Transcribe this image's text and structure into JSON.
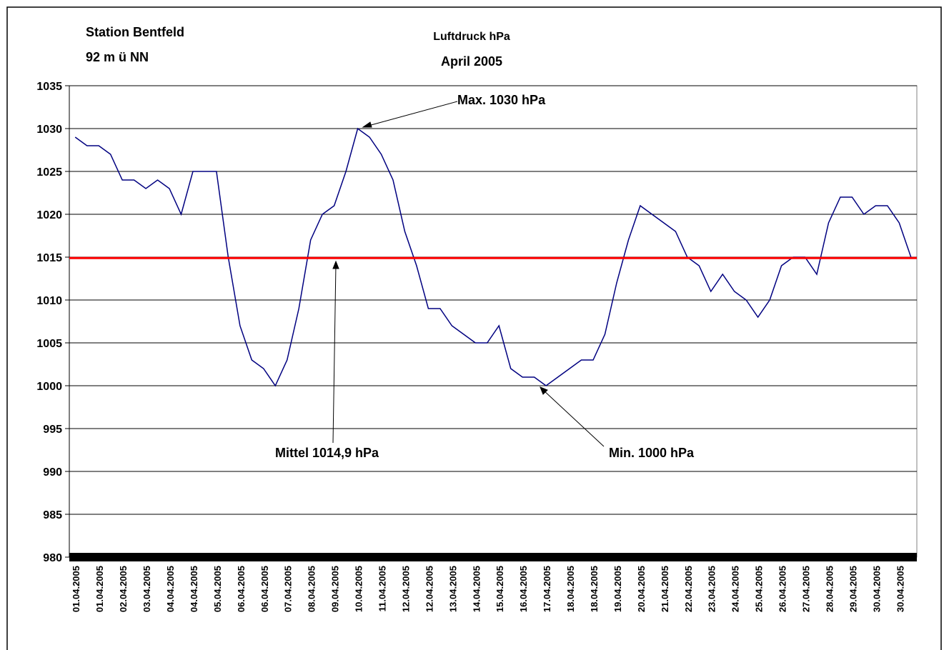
{
  "chart_data": {
    "type": "line",
    "title": "Luftdruck hPa",
    "subtitle": "April 2005",
    "station": "Station Bentfeld",
    "elevation": "92 m ü NN",
    "categories": [
      "01.04.2005",
      null,
      "01.04.2005",
      null,
      "02.04.2005",
      null,
      "03.04.2005",
      null,
      "04.04.2005",
      null,
      "04.04.2005",
      null,
      "05.04.2005",
      null,
      "06.04.2005",
      null,
      "06.04.2005",
      null,
      "07.04.2005",
      null,
      "08.04.2005",
      null,
      "09.04.2005",
      null,
      "10.04.2005",
      null,
      "11.04.2005",
      null,
      "12.04.2005",
      null,
      "12.04.2005",
      null,
      "13.04.2005",
      null,
      "14.04.2005",
      null,
      "15.04.2005",
      null,
      "16.04.2005",
      null,
      "17.04.2005",
      null,
      "18.04.2005",
      null,
      "18.04.2005",
      null,
      "19.04.2005",
      null,
      "20.04.2005",
      null,
      "21.04.2005",
      null,
      "22.04.2005",
      null,
      "23.04.2005",
      null,
      "24.04.2005",
      null,
      "25.04.2005",
      null,
      "26.04.2005",
      null,
      "27.04.2005",
      null,
      "28.04.2005",
      null,
      "29.04.2005",
      null,
      "30.04.2005",
      null,
      "30.04.2005",
      null
    ],
    "series": [
      {
        "name": "Luftdruck",
        "color": "#000080",
        "values": [
          1029,
          1028,
          1028,
          1027,
          1024,
          1024,
          1023,
          1024,
          1023,
          1020,
          1025,
          1025,
          1025,
          1015,
          1007,
          1003,
          1002,
          1000,
          1003,
          1009,
          1017,
          1020,
          1021,
          1025,
          1030,
          1029,
          1027,
          1024,
          1018,
          1014,
          1009,
          1009,
          1007,
          1006,
          1005,
          1005,
          1007,
          1002,
          1001,
          1001,
          1000,
          1001,
          1002,
          1003,
          1003,
          1006,
          1012,
          1017,
          1021,
          1020,
          1019,
          1018,
          1015,
          1014,
          1011,
          1013,
          1011,
          1010,
          1008,
          1010,
          1014,
          1015,
          1015,
          1013,
          1019,
          1022,
          1022,
          1020,
          1021,
          1021,
          1019,
          1015
        ]
      }
    ],
    "mean": 1014.9,
    "mean_color": "#ff0000",
    "annotations": {
      "max": "Max. 1030 hPa",
      "mean": "Mittel 1014,9 hPa",
      "min": "Min. 1000 hPa"
    },
    "ylim": [
      980,
      1035
    ],
    "yticks": [
      980,
      985,
      990,
      995,
      1000,
      1005,
      1010,
      1015,
      1020,
      1025,
      1030,
      1035
    ],
    "grid": true
  }
}
